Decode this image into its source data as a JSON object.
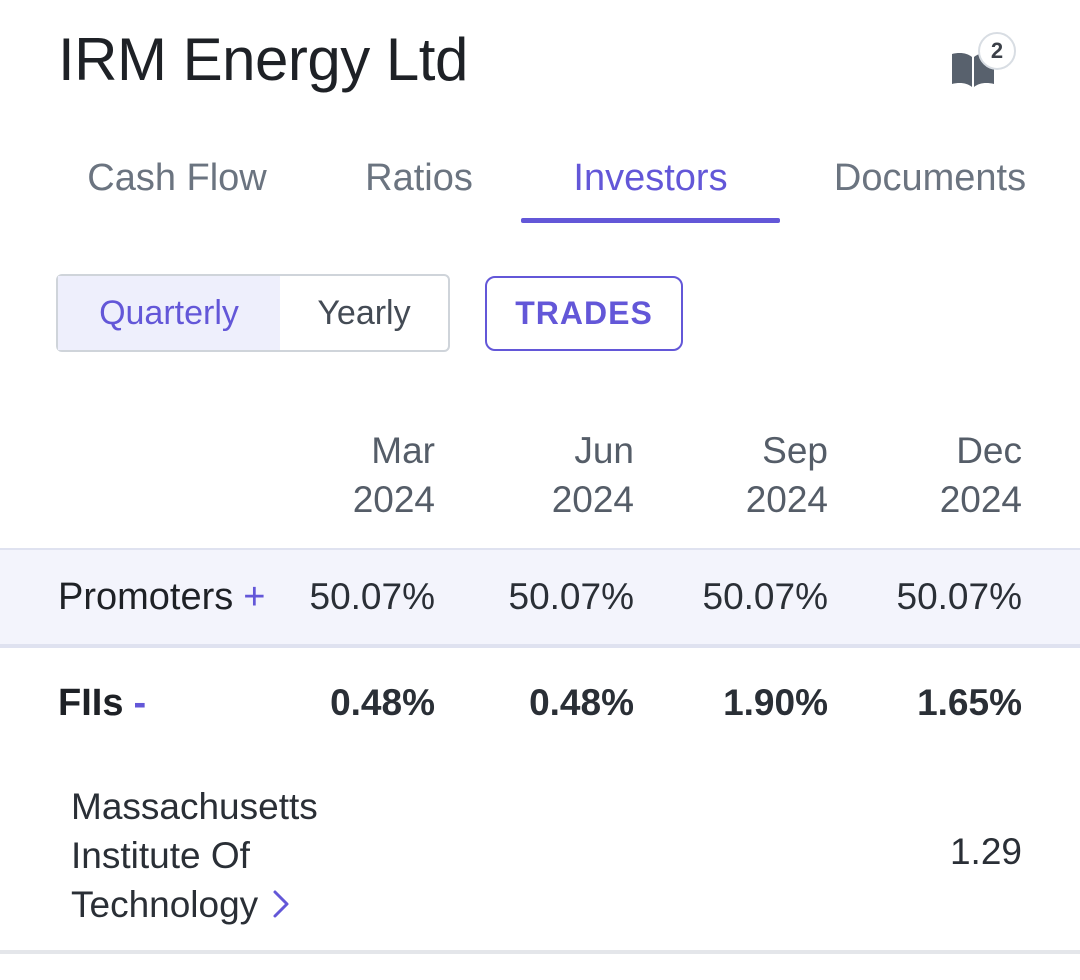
{
  "header": {
    "company_name": "IRM Energy Ltd",
    "notes_icon": "book-open-icon",
    "notes_count": "2"
  },
  "tabs": [
    {
      "label": "Cash Flow",
      "active": false
    },
    {
      "label": "Ratios",
      "active": false
    },
    {
      "label": "Investors",
      "active": true
    },
    {
      "label": "Documents",
      "active": false
    }
  ],
  "period_toggle": {
    "quarterly": "Quarterly",
    "yearly": "Yearly",
    "selected": "Quarterly"
  },
  "trades_button": "TRADES",
  "colors": {
    "accent": "#6357d8",
    "row_highlight": "#f3f4fc"
  },
  "table": {
    "columns": [
      {
        "month": "Mar",
        "year": "2024"
      },
      {
        "month": "Jun",
        "year": "2024"
      },
      {
        "month": "Sep",
        "year": "2024"
      },
      {
        "month": "Dec",
        "year": "2024"
      }
    ],
    "rows": {
      "promoters": {
        "label": "Promoters",
        "sign": "+",
        "values": [
          "50.07%",
          "50.07%",
          "50.07%",
          "50.07%"
        ]
      },
      "fiis": {
        "label": "FIIs",
        "sign": "-",
        "values": [
          "0.48%",
          "0.48%",
          "1.90%",
          "1.65%"
        ]
      },
      "mit": {
        "label": "Massachusetts Institute Of Technology",
        "values": [
          "",
          "",
          "",
          "1.29"
        ],
        "chevron_icon": "chevron-right-icon"
      }
    }
  }
}
